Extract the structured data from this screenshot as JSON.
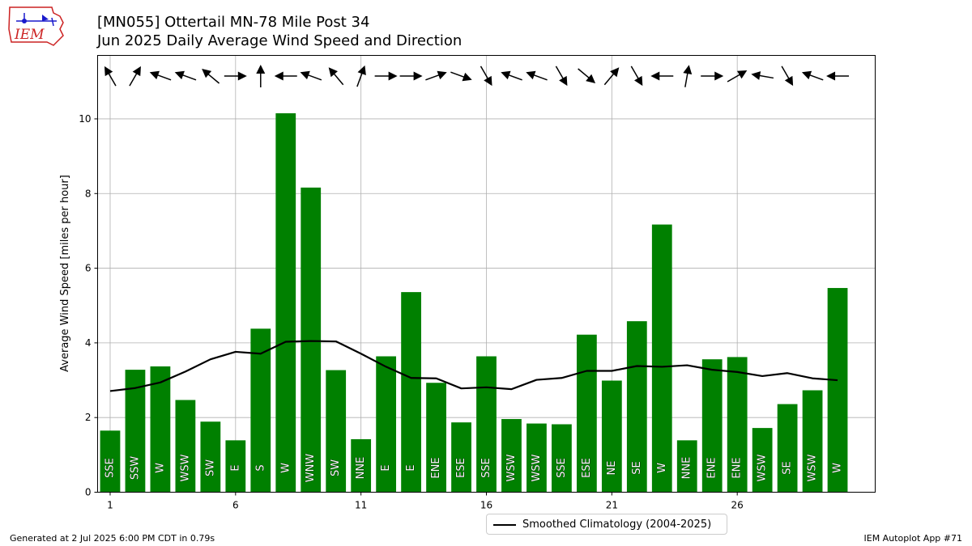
{
  "header": {
    "logo_text": "IEM",
    "title_line1": "[MN055] Ottertail MN-78 Mile Post 34",
    "title_line2": "Jun 2025 Daily Average Wind Speed and Direction"
  },
  "footer": {
    "left": "Generated at 2 Jul 2025 6:00 PM CDT in 0.79s",
    "right": "IEM Autoplot App #71"
  },
  "colors": {
    "bar": "#008000",
    "climatology_line": "#000000",
    "grid": "#b0b0b0",
    "logo_red": "#cc2222",
    "logo_blue": "#1a1acc"
  },
  "chart_data": {
    "type": "bar",
    "title": "[MN055] Ottertail MN-78 Mile Post 34",
    "subtitle": "Jun 2025 Daily Average Wind Speed and Direction",
    "xlabel": "",
    "ylabel": "Average Wind Speed [miles per hour]",
    "xlim": [
      0.5,
      31.5
    ],
    "ylim": [
      0,
      11.7
    ],
    "xticks": [
      1,
      6,
      11,
      16,
      21,
      26
    ],
    "yticks": [
      0,
      2,
      4,
      6,
      8,
      10
    ],
    "grid": true,
    "legend_position": "bottom-center",
    "days": [
      1,
      2,
      3,
      4,
      5,
      6,
      7,
      8,
      9,
      10,
      11,
      12,
      13,
      14,
      15,
      16,
      17,
      18,
      19,
      20,
      21,
      22,
      23,
      24,
      25,
      26,
      27,
      28,
      29,
      30
    ],
    "series": [
      {
        "type": "bar",
        "values": [
          1.65,
          3.28,
          3.37,
          2.47,
          1.89,
          1.39,
          4.38,
          10.15,
          8.16,
          3.27,
          1.42,
          3.64,
          5.36,
          2.93,
          1.87,
          3.64,
          1.96,
          1.84,
          1.82,
          4.22,
          2.99,
          4.58,
          7.17,
          1.39,
          3.56,
          3.62,
          1.72,
          2.36,
          2.73,
          5.47
        ],
        "direction_labels": [
          "SSE",
          "SSW",
          "W",
          "WSW",
          "SW",
          "E",
          "S",
          "W",
          "WNW",
          "SW",
          "NNE",
          "E",
          "E",
          "ENE",
          "ESE",
          "SSE",
          "WSW",
          "WSW",
          "SSE",
          "ESE",
          "NE",
          "SE",
          "W",
          "NNE",
          "ENE",
          "ENE",
          "WSW",
          "SE",
          "WSW",
          "W"
        ],
        "arrow_heading_deg": [
          -30,
          30,
          -70,
          -70,
          -50,
          90,
          0,
          -90,
          -70,
          -40,
          20,
          90,
          90,
          70,
          110,
          150,
          -70,
          -70,
          150,
          130,
          40,
          150,
          -90,
          10,
          90,
          60,
          -80,
          150,
          -70,
          -90
        ]
      },
      {
        "name": "Smoothed Climatology (2004-2025)",
        "type": "line",
        "values": [
          2.71,
          2.79,
          2.94,
          3.23,
          3.56,
          3.76,
          3.71,
          4.03,
          4.05,
          4.04,
          3.71,
          3.36,
          3.06,
          3.05,
          2.78,
          2.81,
          2.76,
          3.01,
          3.06,
          3.25,
          3.25,
          3.38,
          3.36,
          3.4,
          3.28,
          3.22,
          3.11,
          3.19,
          3.05,
          3.0
        ]
      }
    ]
  }
}
